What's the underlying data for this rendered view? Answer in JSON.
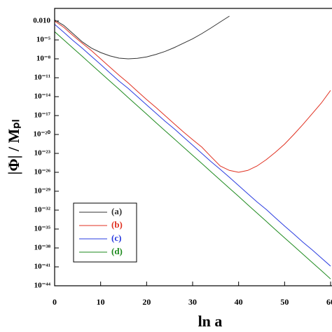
{
  "chart_data": {
    "type": "line",
    "xlabel": "ln a",
    "ylabel": "|Φ| / Mₚₗ",
    "yscale": "log",
    "xlim": [
      0,
      60
    ],
    "xticks": [
      0,
      10,
      20,
      30,
      40,
      50,
      60
    ],
    "ylim": [
      1e-44,
      1
    ],
    "yticks": [
      {
        "value": 0.01,
        "label": "0.010"
      },
      {
        "value": 1e-05,
        "label": "10⁻⁵"
      },
      {
        "value": 1e-08,
        "label": "10⁻⁸"
      },
      {
        "value": 1e-11,
        "label": "10⁻¹¹"
      },
      {
        "value": 1e-14,
        "label": "10⁻¹⁴"
      },
      {
        "value": 1e-17,
        "label": "10⁻¹⁷"
      },
      {
        "value": 1e-20,
        "label": "10⁻²⁰"
      },
      {
        "value": 1e-23,
        "label": "10⁻²³"
      },
      {
        "value": 1e-26,
        "label": "10⁻²⁶"
      },
      {
        "value": 1e-29,
        "label": "10⁻²⁹"
      },
      {
        "value": 1e-32,
        "label": "10⁻³²"
      },
      {
        "value": 1e-35,
        "label": "10⁻³⁵"
      },
      {
        "value": 1e-38,
        "label": "10⁻³⁸"
      },
      {
        "value": 1e-41,
        "label": "10⁻⁴¹"
      },
      {
        "value": 1e-44,
        "label": "10⁻⁴⁴"
      }
    ],
    "legend": "lower left",
    "x": [
      0,
      2,
      4,
      6,
      8,
      10,
      12,
      14,
      16,
      18,
      20,
      22,
      24,
      26,
      28,
      30,
      32,
      34,
      36,
      38,
      40,
      42,
      44,
      46,
      48,
      50,
      52,
      54,
      56,
      58,
      60
    ],
    "series": [
      {
        "name": "(a)",
        "color": "#333333",
        "values": [
          0.015,
          0.002,
          0.0001,
          5e-06,
          5e-07,
          1e-07,
          3e-08,
          1.3e-08,
          1e-08,
          1.2e-08,
          2e-08,
          5e-08,
          1.5e-07,
          6e-07,
          3e-06,
          1.5e-05,
          0.0001,
          0.0008,
          0.007,
          0.06,
          null,
          null,
          null,
          null,
          null,
          null,
          null,
          null,
          null,
          null,
          null
        ]
      },
      {
        "name": "(b)",
        "color": "#e03020",
        "values": [
          0.01,
          0.001,
          5e-05,
          3e-06,
          2e-07,
          1e-08,
          5e-10,
          2.5e-11,
          1.5e-12,
          7e-14,
          3.5e-15,
          2e-16,
          1e-17,
          5e-19,
          2.5e-20,
          1.5e-21,
          1e-22,
          3e-24,
          1e-25,
          2e-26,
          1e-26,
          2e-26,
          1e-25,
          1e-24,
          1.5e-23,
          3e-22,
          1e-20,
          4e-19,
          2e-17,
          1e-15,
          1e-13
        ]
      },
      {
        "name": "(c)",
        "color": "#2a3ce0",
        "values": [
          0.003,
          0.00016,
          8e-06,
          5e-07,
          2.5e-08,
          1.3e-09,
          6e-11,
          3e-12,
          2e-13,
          1e-14,
          5e-16,
          2.5e-17,
          1.3e-18,
          8e-20,
          4e-21,
          2e-22,
          1e-23,
          5e-25,
          3e-26,
          1.6e-27,
          8e-29,
          4e-30,
          2e-31,
          1.3e-32,
          6e-34,
          3e-35,
          1.6e-36,
          8e-38,
          5e-39,
          2.5e-40,
          1.3e-41
        ]
      },
      {
        "name": "(d)",
        "color": "#1e8a1e",
        "values": [
          0.0002,
          1e-05,
          5e-07,
          2.5e-08,
          1.2e-09,
          6e-11,
          3e-12,
          1.5e-13,
          7e-15,
          3.5e-16,
          1.7e-17,
          8e-19,
          4e-20,
          2e-21,
          1e-22,
          5e-24,
          2.5e-25,
          1.2e-26,
          6e-28,
          3e-29,
          1.5e-30,
          7e-32,
          3.5e-33,
          1.7e-34,
          8e-36,
          4e-37,
          2e-38,
          1e-39,
          5e-41,
          2.5e-42,
          1.2e-43
        ]
      }
    ]
  }
}
